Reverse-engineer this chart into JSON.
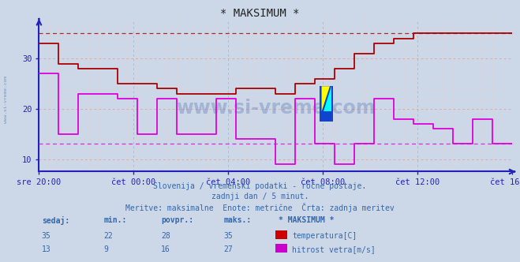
{
  "title": "* MAKSIMUM *",
  "bg_color": "#ccd8e8",
  "plot_bg_color": "#ccd8e8",
  "temp_color": "#aa0000",
  "wind_color": "#dd00dd",
  "grid_major_color": "#ddaaaa",
  "grid_minor_color": "#eecccc",
  "axis_color": "#2222bb",
  "text_color": "#3366aa",
  "subtitle1": "Slovenija / vremenski podatki - ročne postaje.",
  "subtitle2": "zadnji dan / 5 minut.",
  "subtitle3": "Meritve: maksimalne  Enote: metrične  Črta: zadnja meritev",
  "xticklabels": [
    "sre 20:00",
    "čet 00:00",
    "čet 04:00",
    "čet 08:00",
    "čet 12:00",
    "čet 16:00"
  ],
  "yticks": [
    10,
    20,
    30
  ],
  "ylim": [
    7.5,
    37.5
  ],
  "xlim": [
    0,
    288
  ],
  "temp_max_ref": 35,
  "wind_max_ref": 13,
  "legend_headers": [
    "sedaj:",
    "min.:",
    "povpr.:",
    "maks.:",
    "* MAKSIMUM *"
  ],
  "temp_stats": [
    "35",
    "22",
    "28",
    "35"
  ],
  "wind_stats": [
    "13",
    "9",
    "16",
    "27"
  ],
  "temp_label": "temperatura[C]",
  "wind_label": "hitrost vetra[m/s]",
  "temp_box_color": "#cc0000",
  "wind_box_color": "#cc00cc",
  "temp_data_x": [
    0,
    12,
    24,
    48,
    72,
    84,
    120,
    144,
    156,
    168,
    180,
    192,
    204,
    216,
    228,
    240,
    252,
    264,
    276,
    288
  ],
  "temp_data_y": [
    33,
    29,
    28,
    25,
    24,
    23,
    24,
    23,
    25,
    26,
    28,
    31,
    33,
    34,
    35,
    35,
    35,
    35,
    35,
    35
  ],
  "wind_data_x": [
    0,
    12,
    24,
    48,
    60,
    72,
    84,
    108,
    120,
    144,
    156,
    168,
    180,
    192,
    204,
    216,
    228,
    240,
    252,
    264,
    276,
    288
  ],
  "wind_data_y": [
    27,
    15,
    23,
    22,
    15,
    22,
    15,
    22,
    14,
    9,
    22,
    13,
    9,
    13,
    22,
    18,
    17,
    16,
    13,
    18,
    13,
    13
  ],
  "watermark": "www.si-vreme.com",
  "marker_x": 172,
  "marker_y": 20
}
